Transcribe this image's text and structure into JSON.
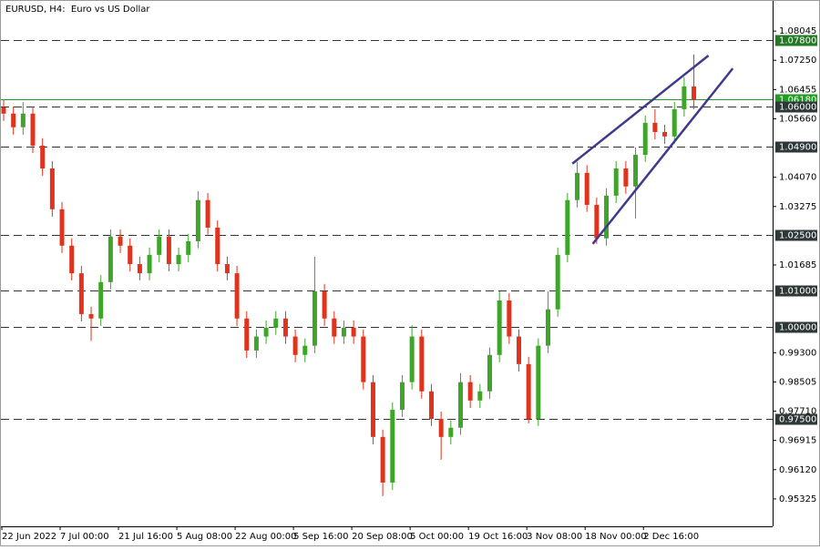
{
  "chart_data": {
    "type": "candlestick",
    "title": "EURUSD, H4:  Euro vs US Dollar",
    "categories": [
      "22 Jun 2022",
      null,
      null,
      null,
      null,
      null,
      "7 Jul 00:00",
      null,
      null,
      null,
      null,
      null,
      "21 Jul 16:00",
      null,
      null,
      null,
      null,
      null,
      "5 Aug 08:00",
      null,
      null,
      null,
      null,
      null,
      "22 Aug 00:00",
      null,
      null,
      null,
      null,
      null,
      "5 Sep 16:00",
      null,
      null,
      null,
      null,
      null,
      "20 Sep 08:00",
      null,
      null,
      null,
      null,
      null,
      "5 Oct 00:00",
      null,
      null,
      null,
      null,
      null,
      "19 Oct 16:00",
      null,
      null,
      null,
      null,
      null,
      "3 Nov 08:00",
      null,
      null,
      null,
      null,
      null,
      "18 Nov 00:00",
      null,
      null,
      null,
      null,
      null,
      "2 Dec 16:00",
      null,
      null,
      null,
      null,
      null
    ],
    "open": [
      1.0597,
      1.058,
      1.0543,
      1.058,
      1.0493,
      1.0431,
      1.032,
      1.0221,
      1.0146,
      1.0035,
      1.0023,
      1.0122,
      1.0246,
      1.0221,
      1.0171,
      1.0146,
      1.0196,
      1.0246,
      1.0171,
      1.0196,
      1.0233,
      1.0345,
      1.027,
      1.0171,
      1.0146,
      1.0023,
      0.9936,
      0.9974,
      0.9998,
      1.0023,
      0.9974,
      0.9924,
      0.9949,
      1.0097,
      1.0023,
      0.9974,
      0.9998,
      0.9974,
      0.985,
      0.9701,
      0.9577,
      0.9775,
      0.985,
      0.9974,
      0.9825,
      0.975,
      0.9701,
      0.9726,
      0.985,
      0.98,
      0.9825,
      0.9924,
      1.0072,
      0.9974,
      0.9899,
      0.975,
      0.9949,
      1.0048,
      1.0196,
      1.0345,
      1.0419,
      1.0332,
      1.0241,
      1.0357,
      1.0431,
      1.0382,
      1.0468,
      1.0555,
      1.053,
      1.0518,
      1.0592,
      1.0654
    ],
    "high": [
      1.0617,
      1.0599,
      1.0612,
      1.0599,
      1.0513,
      1.0451,
      1.034,
      1.0241,
      1.0166,
      1.0055,
      1.0141,
      1.0265,
      1.0265,
      1.0241,
      1.0191,
      1.0216,
      1.0265,
      1.0265,
      1.0216,
      1.0253,
      1.0369,
      1.0364,
      1.029,
      1.0191,
      1.0166,
      1.0043,
      0.9993,
      1.0018,
      1.0043,
      1.0043,
      0.9993,
      0.9969,
      1.0191,
      1.0117,
      1.0043,
      1.0018,
      1.0018,
      0.9993,
      0.9869,
      0.9721,
      0.9795,
      0.9869,
      1.0005,
      0.9993,
      0.9845,
      0.977,
      0.9746,
      0.9874,
      0.9869,
      0.9845,
      0.9944,
      1.0097,
      1.0092,
      0.9993,
      0.9919,
      0.9969,
      1.0097,
      1.0216,
      1.0364,
      1.0449,
      1.044,
      1.0352,
      1.0377,
      1.0451,
      1.0451,
      1.0488,
      1.0575,
      1.0592,
      1.055,
      1.0612,
      1.0679,
      1.0741
    ],
    "low": [
      1.056,
      1.0523,
      1.0523,
      1.0473,
      1.0411,
      1.03,
      1.0201,
      1.0127,
      1.0015,
      0.9962,
      1.0003,
      1.0102,
      1.0201,
      1.0151,
      1.0127,
      1.0127,
      1.0176,
      1.0151,
      1.0151,
      1.0176,
      1.0214,
      1.0251,
      1.0151,
      1.0127,
      1.0003,
      0.9916,
      0.9916,
      0.9954,
      0.9979,
      0.9954,
      0.9904,
      0.9904,
      0.9929,
      1.0003,
      0.9954,
      0.9954,
      0.9954,
      0.983,
      0.9681,
      0.954,
      0.9557,
      0.9755,
      0.983,
      0.9805,
      0.9731,
      0.9639,
      0.9681,
      0.9707,
      0.978,
      0.978,
      0.9805,
      0.9904,
      0.9954,
      0.9879,
      0.9738,
      0.9731,
      0.9929,
      1.0028,
      1.0176,
      1.0325,
      1.0313,
      1.0226,
      1.0221,
      1.0337,
      1.0362,
      1.0295,
      1.0449,
      1.051,
      1.0498,
      1.0498,
      1.0572,
      1.0592
    ],
    "close": [
      1.058,
      1.0543,
      1.058,
      1.0493,
      1.0431,
      1.032,
      1.0221,
      1.0146,
      1.0035,
      1.0023,
      1.0122,
      1.0246,
      1.0221,
      1.0171,
      1.0146,
      1.0196,
      1.0246,
      1.0171,
      1.0196,
      1.0233,
      1.0345,
      1.027,
      1.0171,
      1.0146,
      1.0023,
      0.9936,
      0.9974,
      0.9998,
      1.0023,
      0.9974,
      0.9924,
      0.9949,
      1.0097,
      1.0023,
      0.9974,
      0.9998,
      0.9974,
      0.985,
      0.9701,
      0.9577,
      0.9775,
      0.985,
      0.9974,
      0.9825,
      0.975,
      0.9701,
      0.9726,
      0.985,
      0.98,
      0.9825,
      0.9924,
      1.0072,
      0.9974,
      0.9899,
      0.975,
      0.9949,
      1.0048,
      1.0196,
      1.0345,
      1.0419,
      1.0332,
      1.0241,
      1.0357,
      1.0431,
      1.0382,
      1.0468,
      1.0555,
      1.053,
      1.0518,
      1.0592,
      1.0654,
      1.0617
    ],
    "up_color": "#3fa52a",
    "down_color": "#e0321c",
    "ylim": [
      0.9458,
      1.0884
    ],
    "yticks": [
      1.08045,
      {
        "value": 1.0725,
        "label": "1.07250"
      },
      1.06455,
      {
        "value": 1.0566,
        "label": "1.05660"
      },
      {
        "value": 1.0407,
        "label": "1.04070"
      },
      1.03275,
      1.01685,
      {
        "value": 0.993,
        "label": "0.99300"
      },
      0.98505,
      {
        "value": 0.9771,
        "label": "0.97710"
      },
      0.96915,
      {
        "value": 0.9612,
        "label": "0.96120"
      },
      0.95325
    ],
    "bid": {
      "value": 1.0618,
      "label": "1.06180",
      "color": "#1f9e1f"
    },
    "levels": [
      {
        "value": 1.078,
        "label": "1.07800",
        "color": "#237a23"
      },
      {
        "value": 1.06,
        "label": "1.06000",
        "color": "#2f3838"
      },
      {
        "value": 1.049,
        "label": "1.04900",
        "color": "#2f3838"
      },
      {
        "value": 1.025,
        "label": "1.02500",
        "color": "#2f3838"
      },
      {
        "value": 1.01,
        "label": "1.01000",
        "color": "#2f3838"
      },
      {
        "value": 1.0,
        "label": "1.00000",
        "color": "#2f3838"
      },
      {
        "value": 0.975,
        "label": "0.97500",
        "color": "#2f3838"
      }
    ],
    "trendline_color": "#3f3a8c",
    "trendlines": [
      {
        "x": [
          58.5,
          72.5
        ],
        "y": [
          1.0444,
          1.0738
        ]
      },
      {
        "x": [
          60.6,
          75
        ],
        "y": [
          1.0226,
          1.0703
        ]
      }
    ]
  }
}
